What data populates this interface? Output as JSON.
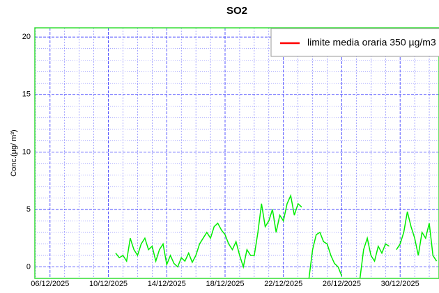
{
  "chart_data": {
    "type": "line",
    "title": "SO2",
    "y_label": "Conc.(µg/ m³)",
    "x": [
      "2025-12-10T12",
      "2025-12-10T18",
      "2025-12-11T00",
      "2025-12-11T06",
      "2025-12-11T12",
      "2025-12-11T18",
      "2025-12-12T00",
      "2025-12-12T06",
      "2025-12-12T12",
      "2025-12-12T18",
      "2025-12-13T00",
      "2025-12-13T06",
      "2025-12-13T12",
      "2025-12-13T18",
      "2025-12-14T00",
      "2025-12-14T06",
      "2025-12-14T12",
      "2025-12-14T18",
      "2025-12-15T00",
      "2025-12-15T06",
      "2025-12-15T12",
      "2025-12-15T18",
      "2025-12-16T00",
      "2025-12-16T06",
      "2025-12-16T12",
      "2025-12-16T18",
      "2025-12-17T00",
      "2025-12-17T06",
      "2025-12-17T12",
      "2025-12-17T18",
      "2025-12-18T00",
      "2025-12-18T06",
      "2025-12-18T12",
      "2025-12-18T18",
      "2025-12-19T00",
      "2025-12-19T06",
      "2025-12-19T12",
      "2025-12-19T18",
      "2025-12-20T00",
      "2025-12-20T06",
      "2025-12-20T12",
      "2025-12-20T18",
      "2025-12-21T00",
      "2025-12-21T06",
      "2025-12-21T12",
      "2025-12-21T18",
      "2025-12-22T00",
      "2025-12-22T06",
      "2025-12-22T12",
      "2025-12-22T18",
      "2025-12-23T00",
      "2025-12-23T06",
      "2025-12-23T12",
      "2025-12-23T18",
      "2025-12-24T00",
      "2025-12-24T06",
      "2025-12-24T12",
      "2025-12-24T18",
      "2025-12-25T00",
      "2025-12-25T06",
      "2025-12-25T12",
      "2025-12-25T18",
      "2025-12-26T00",
      "2025-12-26T06",
      "2025-12-26T12",
      "2025-12-26T18",
      "2025-12-27T00",
      "2025-12-27T06",
      "2025-12-27T12",
      "2025-12-27T18",
      "2025-12-28T00",
      "2025-12-28T06",
      "2025-12-28T12",
      "2025-12-28T18",
      "2025-12-29T00",
      "2025-12-29T06",
      "2025-12-29T12",
      "2025-12-29T18",
      "2025-12-30T00",
      "2025-12-30T06",
      "2025-12-30T12",
      "2025-12-30T18",
      "2025-12-31T00",
      "2025-12-31T06",
      "2025-12-31T12",
      "2025-12-31T18",
      "2026-01-01T00",
      "2026-01-01T06",
      "2026-01-01T12"
    ],
    "series": [
      {
        "color": "#00ee00",
        "values": [
          1.2,
          0.8,
          1.0,
          0.5,
          2.5,
          1.5,
          1.0,
          2.0,
          2.5,
          1.5,
          1.8,
          0.5,
          1.5,
          2.0,
          0.2,
          1.0,
          0.3,
          0.0,
          0.8,
          0.5,
          1.2,
          0.4,
          1.0,
          2.0,
          2.5,
          3.0,
          2.5,
          3.5,
          3.8,
          3.2,
          2.8,
          2.0,
          1.5,
          2.2,
          1.0,
          0.0,
          1.5,
          1.0,
          1.0,
          3.0,
          5.5,
          3.5,
          4.0,
          5.0,
          3.0,
          4.5,
          4.0,
          5.5,
          6.2,
          4.5,
          5.5,
          5.2,
          null,
          -1.0,
          1.5,
          2.8,
          3.0,
          2.2,
          2.0,
          1.0,
          0.3,
          0.0,
          -0.8,
          null,
          null,
          null,
          null,
          -1.0,
          1.5,
          2.5,
          1.0,
          0.5,
          1.8,
          1.2,
          2.0,
          1.8,
          null,
          1.5,
          2.0,
          3.0,
          4.8,
          3.5,
          2.5,
          1.0,
          3.0,
          2.5,
          3.8,
          1.0,
          0.5
        ]
      }
    ],
    "legend": [
      {
        "name": "limite media oraria 350 µg/m3",
        "color": "#ff0000"
      }
    ],
    "legend_position": "upper right",
    "xlim": [
      "2025-12-04T23",
      "2026-01-01T16"
    ],
    "xticks": [
      {
        "value": "2025-12-06T00",
        "label": "06/12/2025"
      },
      {
        "value": "2025-12-10T00",
        "label": "10/12/2025"
      },
      {
        "value": "2025-12-14T00",
        "label": "14/12/2025"
      },
      {
        "value": "2025-12-18T00",
        "label": "18/12/2025"
      },
      {
        "value": "2025-12-22T00",
        "label": "22/12/2025"
      },
      {
        "value": "2025-12-26T00",
        "label": "26/12/2025"
      },
      {
        "value": "2025-12-30T00",
        "label": "30/12/2025"
      }
    ],
    "xminor": [
      "2025-12-05T00",
      "2025-12-07T00",
      "2025-12-08T00",
      "2025-12-09T00",
      "2025-12-11T00",
      "2025-12-12T00",
      "2025-12-13T00",
      "2025-12-15T00",
      "2025-12-16T00",
      "2025-12-17T00",
      "2025-12-19T00",
      "2025-12-20T00",
      "2025-12-21T00",
      "2025-12-23T00",
      "2025-12-24T00",
      "2025-12-25T00",
      "2025-12-27T00",
      "2025-12-28T00",
      "2025-12-29T00",
      "2025-12-31T00",
      "2026-01-01T00"
    ],
    "ylim": [
      -1,
      20.8
    ],
    "yticks": [
      0,
      5,
      10,
      15,
      20
    ],
    "yminor": [
      1,
      2,
      3,
      4,
      6,
      7,
      8,
      9,
      11,
      12,
      13,
      14,
      16,
      17,
      18,
      19
    ],
    "grid": true
  }
}
